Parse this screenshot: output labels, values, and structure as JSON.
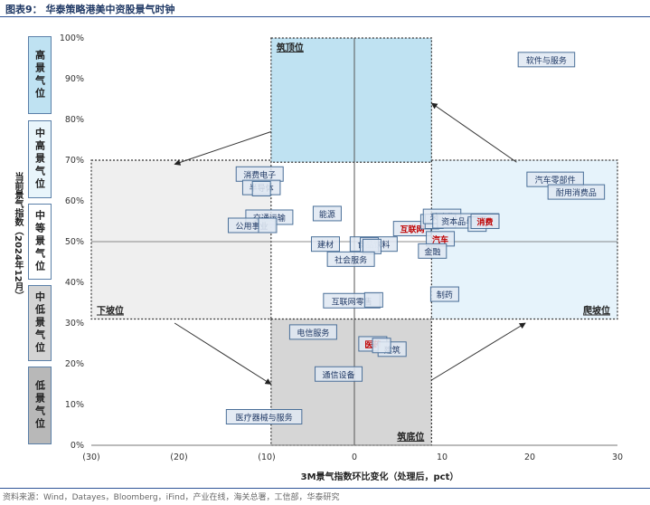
{
  "title": "图表9：  华泰策略港美中资股景气时钟",
  "source": "资料来源：Wind，Datayes，Bloomberg，iFind，产业在线，海关总署，工信部，华泰研究",
  "levels": [
    {
      "label": "高景气位",
      "color": "#bfe2f2"
    },
    {
      "label": "中高景气位",
      "color": "#e9f5fb"
    },
    {
      "label": "中等景气位",
      "color": "#ffffff"
    },
    {
      "label": "中低景气位",
      "color": "#d4d4d4"
    },
    {
      "label": "低景气位",
      "color": "#b8b8b8"
    }
  ],
  "chart_data": {
    "type": "scatter",
    "xlabel": "3M景气指数环比变化（处理后，pct）",
    "ylabel": "当前景气指数（2024年12月）",
    "xlim": [
      -30,
      30
    ],
    "ylim": [
      0,
      100
    ],
    "x_ticks": [
      "(30)",
      "(20)",
      "(10)",
      "0",
      "10",
      "20",
      "30"
    ],
    "y_ticks": [
      "0%",
      "10%",
      "20%",
      "30%",
      "40%",
      "50%",
      "60%",
      "70%",
      "80%",
      "90%",
      "100%"
    ],
    "zones": [
      {
        "label": "筑顶位",
        "x": [
          -9.5,
          8.8
        ],
        "y": [
          69.5,
          100
        ],
        "color": "#bfe2f2"
      },
      {
        "label": "下坡位",
        "x": [
          -30,
          -9.5
        ],
        "y": [
          31,
          70
        ],
        "color": "#efefef"
      },
      {
        "label": "筑底位",
        "x": [
          -9.5,
          8.8
        ],
        "y": [
          0,
          31
        ],
        "color": "#d6d6d6"
      },
      {
        "label": "爬坡位",
        "x": [
          8.8,
          30
        ],
        "y": [
          31,
          70
        ],
        "color": "#e6f3fb"
      }
    ],
    "points": [
      {
        "label": "软件与服务",
        "x": 21.9,
        "y": 94.7,
        "highlight": false
      },
      {
        "label": "汽车零部件",
        "x": 22.9,
        "y": 65.3,
        "highlight": false
      },
      {
        "label": "耐用消费品",
        "x": 25.3,
        "y": 62.2,
        "highlight": false
      },
      {
        "label": "消费电子",
        "x": -10.8,
        "y": 66.6,
        "highlight": false
      },
      {
        "label": "半导体",
        "x": -10.6,
        "y": 63.3,
        "highlight": false
      },
      {
        "label": "",
        "x": -10.6,
        "y": 63.0,
        "highlight": false
      },
      {
        "label": "能源",
        "x": -3.1,
        "y": 56.9,
        "highlight": false
      },
      {
        "label": "交通运输",
        "x": -9.7,
        "y": 56.0,
        "highlight": false
      },
      {
        "label": "公用事业",
        "x": -11.7,
        "y": 54.0,
        "highlight": false
      },
      {
        "label": "",
        "x": -9.9,
        "y": 54.0,
        "highlight": false
      },
      {
        "label": "建材",
        "x": -3.3,
        "y": 49.4,
        "highlight": false
      },
      {
        "label": "食品饮料",
        "x": 2.2,
        "y": 49.4,
        "highlight": false
      },
      {
        "label": "",
        "x": 1.7,
        "y": 49.2,
        "highlight": false
      },
      {
        "label": "",
        "x": 2.0,
        "y": 48.8,
        "highlight": false
      },
      {
        "label": "社会服务",
        "x": -0.4,
        "y": 45.7,
        "highlight": false
      },
      {
        "label": "互联网",
        "x": 6.6,
        "y": 53.2,
        "highlight": true
      },
      {
        "label": "",
        "x": 8.6,
        "y": 54.9,
        "highlight": false
      },
      {
        "label": "",
        "x": 9.1,
        "y": 55.0,
        "highlight": false
      },
      {
        "label": "采矿业",
        "x": 10.0,
        "y": 56.2,
        "highlight": false
      },
      {
        "label": "",
        "x": 10.5,
        "y": 55.1,
        "highlight": false
      },
      {
        "label": "资本品与零售",
        "x": 12.7,
        "y": 55.1,
        "highlight": false
      },
      {
        "label": "",
        "x": 14.0,
        "y": 54.3,
        "highlight": false
      },
      {
        "label": "消费",
        "x": 14.9,
        "y": 55.0,
        "highlight": true
      },
      {
        "label": "汽车",
        "x": 9.8,
        "y": 50.7,
        "highlight": true
      },
      {
        "label": "金融",
        "x": 8.9,
        "y": 47.7,
        "highlight": false
      },
      {
        "label": "制药",
        "x": 10.3,
        "y": 37.1,
        "highlight": false
      },
      {
        "label": "互联网零售",
        "x": -0.3,
        "y": 35.5,
        "highlight": false
      },
      {
        "label": "",
        "x": 2.2,
        "y": 35.7,
        "highlight": false
      },
      {
        "label": "电信服务",
        "x": -4.7,
        "y": 27.8,
        "highlight": false
      },
      {
        "label": "医药",
        "x": 2.1,
        "y": 24.9,
        "highlight": true
      },
      {
        "label": "建筑",
        "x": 4.3,
        "y": 23.6,
        "highlight": false
      },
      {
        "label": "",
        "x": 3.1,
        "y": 24.5,
        "highlight": false
      },
      {
        "label": "通信设备",
        "x": -1.8,
        "y": 17.5,
        "highlight": false
      },
      {
        "label": "医疗器械与服务",
        "x": -10.3,
        "y": 7.0,
        "highlight": false
      }
    ]
  }
}
